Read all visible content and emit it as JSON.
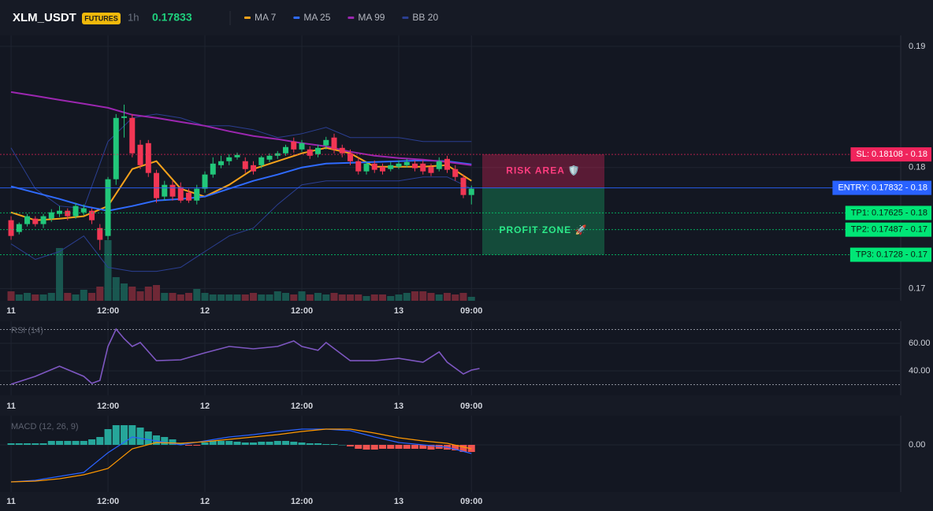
{
  "header": {
    "symbol": "XLM_USDT",
    "badge": "FUTURES",
    "interval": "1h",
    "price": 0.17833
  },
  "chart_data": [
    {
      "type": "candlestick",
      "xlim": [
        -1.37,
        110.15
      ],
      "xticks": [
        {
          "value": 0,
          "label": "11"
        },
        {
          "value": 12,
          "label": "12:00"
        },
        {
          "value": 24,
          "label": "12"
        },
        {
          "value": 36,
          "label": "12:00"
        },
        {
          "value": 48,
          "label": "13"
        },
        {
          "value": 57,
          "label": "09:00"
        }
      ],
      "ylim": [
        0.169,
        0.1909
      ],
      "yticks": [
        0.19,
        0.18,
        0.17
      ],
      "up_color": "#22c77a",
      "down_color": "#f23654",
      "open": [
        0.17565,
        0.17468,
        0.17533,
        0.17578,
        0.17533,
        0.17578,
        0.17617,
        0.17643,
        0.17598,
        0.1763,
        0.17643,
        0.175,
        0.17435,
        0.17903,
        0.18409,
        0.18409,
        0.18188,
        0.18201,
        0.17955,
        0.1776,
        0.17857,
        0.17838,
        0.17792,
        0.17727,
        0.17825,
        0.17942,
        0.18019,
        0.18052,
        0.18084,
        0.18052,
        0.18019,
        0.18019,
        0.18065,
        0.18097,
        0.18117,
        0.18214,
        0.18149,
        0.18149,
        0.1811,
        0.18182,
        0.18247,
        0.18162,
        0.18117,
        0.18052,
        0.17968,
        0.18032,
        0.18006,
        0.17987,
        0.18006,
        0.18019,
        0.18032,
        0.18032,
        0.18006,
        0.17987,
        0.18071,
        0.17987,
        0.17916,
        0.17773
      ],
      "high": [
        0.17598,
        0.17546,
        0.17617,
        0.17598,
        0.17617,
        0.17656,
        0.17682,
        0.17663,
        0.17708,
        0.17695,
        0.17663,
        0.17533,
        0.17922,
        0.18441,
        0.18519,
        0.18441,
        0.18227,
        0.18227,
        0.17981,
        0.1789,
        0.1789,
        0.17877,
        0.17825,
        0.17857,
        0.17968,
        0.18084,
        0.18097,
        0.1811,
        0.18123,
        0.18084,
        0.18052,
        0.18097,
        0.18117,
        0.18136,
        0.18188,
        0.18247,
        0.18227,
        0.18175,
        0.18188,
        0.18253,
        0.18279,
        0.18188,
        0.18149,
        0.18084,
        0.18052,
        0.18058,
        0.18032,
        0.18045,
        0.18058,
        0.18071,
        0.18058,
        0.18058,
        0.18032,
        0.18084,
        0.18097,
        0.18019,
        0.17942,
        0.17851
      ],
      "low": [
        0.17403,
        0.17448,
        0.17513,
        0.17513,
        0.175,
        0.17552,
        0.17591,
        0.17565,
        0.17578,
        0.17604,
        0.17533,
        0.17319,
        0.17403,
        0.17857,
        0.18247,
        0.18084,
        0.17987,
        0.17922,
        0.17708,
        0.17727,
        0.17727,
        0.17708,
        0.17708,
        0.17695,
        0.17792,
        0.17916,
        0.17994,
        0.18019,
        0.18065,
        0.17955,
        0.17942,
        0.17994,
        0.18045,
        0.18071,
        0.18097,
        0.18123,
        0.1813,
        0.18071,
        0.18084,
        0.18149,
        0.18117,
        0.18084,
        0.18019,
        0.17942,
        0.17942,
        0.17955,
        0.17942,
        0.17968,
        0.17987,
        0.18,
        0.17968,
        0.17942,
        0.17929,
        0.17968,
        0.17955,
        0.1789,
        0.17747,
        0.17695
      ],
      "close": [
        0.17435,
        0.17533,
        0.17598,
        0.17533,
        0.17598,
        0.1763,
        0.17643,
        0.17598,
        0.17682,
        0.17663,
        0.17565,
        0.17403,
        0.17903,
        0.18409,
        0.18422,
        0.18117,
        0.18019,
        0.17955,
        0.17747,
        0.17857,
        0.1776,
        0.17727,
        0.17727,
        0.17825,
        0.17942,
        0.18032,
        0.18052,
        0.18084,
        0.18104,
        0.17987,
        0.17968,
        0.18084,
        0.18097,
        0.18117,
        0.18169,
        0.18149,
        0.18201,
        0.18097,
        0.18162,
        0.18227,
        0.18149,
        0.18117,
        0.18052,
        0.17968,
        0.18032,
        0.17981,
        0.17968,
        0.18019,
        0.18032,
        0.18045,
        0.17994,
        0.17968,
        0.17955,
        0.18052,
        0.17981,
        0.17922,
        0.17773,
        0.17825
      ],
      "vlim": [
        0,
        100
      ],
      "volume": [
        12,
        8,
        10,
        8,
        8,
        10,
        67,
        10,
        8,
        14,
        10,
        18,
        77,
        30,
        22,
        18,
        12,
        18,
        20,
        10,
        10,
        8,
        10,
        15,
        10,
        8,
        8,
        8,
        8,
        8,
        10,
        8,
        8,
        12,
        10,
        8,
        12,
        8,
        10,
        8,
        10,
        8,
        8,
        8,
        6,
        8,
        8,
        6,
        8,
        10,
        12,
        12,
        10,
        8,
        10,
        8,
        10,
        5
      ],
      "series": [
        {
          "name": "MA 7",
          "color": "#f7a21b",
          "x": [
            0,
            3,
            6,
            9,
            12,
            15,
            18,
            21,
            24,
            27,
            30,
            33,
            36,
            39,
            42,
            45,
            48,
            51,
            54,
            57
          ],
          "values": [
            0.1763,
            0.17565,
            0.17578,
            0.17598,
            0.17682,
            0.17987,
            0.18052,
            0.17825,
            0.1776,
            0.17857,
            0.17987,
            0.18052,
            0.18117,
            0.18162,
            0.18117,
            0.18006,
            0.18006,
            0.18006,
            0.18019,
            0.1789
          ]
        },
        {
          "name": "MA 25",
          "color": "#2f6bff",
          "x": [
            0,
            3,
            6,
            9,
            12,
            15,
            18,
            21,
            24,
            27,
            30,
            33,
            36,
            39,
            42,
            45,
            48,
            51,
            54,
            57
          ],
          "values": [
            0.17844,
            0.17792,
            0.1774,
            0.17682,
            0.17643,
            0.17682,
            0.17727,
            0.1774,
            0.1776,
            0.17825,
            0.1789,
            0.17942,
            0.18,
            0.18032,
            0.18039,
            0.18045,
            0.18052,
            0.18058,
            0.18052,
            0.18026
          ]
        },
        {
          "name": "MA 99",
          "color": "#9c27b0",
          "x": [
            0,
            3,
            6,
            9,
            12,
            15,
            18,
            21,
            24,
            27,
            30,
            33,
            36,
            39,
            42,
            45,
            48,
            51,
            54,
            57
          ],
          "values": [
            0.18623,
            0.18591,
            0.18558,
            0.18526,
            0.18493,
            0.18435,
            0.18409,
            0.18376,
            0.18344,
            0.18299,
            0.1826,
            0.18234,
            0.18201,
            0.18175,
            0.1813,
            0.18097,
            0.18078,
            0.18065,
            0.18045,
            0.18019
          ]
        },
        {
          "name": "BB 20",
          "color": "#2b3f92",
          "x": [
            0,
            3,
            6,
            9,
            12,
            15,
            18,
            21,
            24,
            27,
            30,
            33,
            36,
            39,
            42,
            45,
            48,
            51,
            54,
            57
          ],
          "values": [
            0.18162,
            0.17825,
            0.17682,
            0.17663,
            0.18214,
            0.18409,
            0.18441,
            0.18409,
            0.18344,
            0.18344,
            0.18312,
            0.18247,
            0.18279,
            0.18331,
            0.18247,
            0.18247,
            0.18247,
            0.18214,
            0.18214,
            0.18214
          ],
          "lower": [
            0.1737,
            0.17241,
            0.17306,
            0.17435,
            0.17176,
            0.17143,
            0.17143,
            0.17176,
            0.17306,
            0.17435,
            0.175,
            0.17695,
            0.17857,
            0.1789,
            0.1789,
            0.1789,
            0.1789,
            0.17922,
            0.17922,
            0.17825
          ]
        }
      ],
      "levels": [
        {
          "label": "SL: 0.18108 - 0.18",
          "value": 0.18108,
          "color": "#f0245c"
        },
        {
          "label": "ENTRY: 0.17832 - 0.18",
          "value": 0.17832,
          "color": "#2962ff"
        },
        {
          "label": "TP1: 0.17625 - 0.18",
          "value": 0.17625,
          "color": "#00e676"
        },
        {
          "label": "TP2: 0.17487 - 0.17",
          "value": 0.17487,
          "color": "#00e676"
        },
        {
          "label": "TP3: 0.1728 - 0.17",
          "value": 0.1728,
          "color": "#00e676"
        }
      ],
      "zones": [
        {
          "label": "RISK AREA 🛡️",
          "color": "#f0245c"
        },
        {
          "label": "PROFIT ZONE 🚀",
          "color": "#19d47a"
        }
      ]
    },
    {
      "type": "line",
      "title": "RSI (14)",
      "xlim": [
        -1.37,
        110.15
      ],
      "xticks": [
        {
          "value": 0,
          "label": "11"
        },
        {
          "value": 12,
          "label": "12:00"
        },
        {
          "value": 24,
          "label": "12"
        },
        {
          "value": 36,
          "label": "12:00"
        },
        {
          "value": 48,
          "label": "13"
        },
        {
          "value": 57,
          "label": "09:00"
        }
      ],
      "ylim": [
        22.3,
        76
      ],
      "yticks": [
        {
          "value": 60,
          "label": "60.00"
        },
        {
          "value": 40,
          "label": "40.00"
        }
      ],
      "levels": [
        70,
        30
      ],
      "series": [
        {
          "color": "#7e57c2",
          "x": [
            0,
            3,
            6,
            9,
            10,
            11,
            12,
            13,
            14,
            15,
            16,
            18,
            21,
            24,
            27,
            30,
            33,
            35,
            36,
            38,
            39,
            42,
            45,
            48,
            51,
            53,
            54,
            56,
            57,
            58
          ],
          "values": [
            30.3,
            36,
            43.4,
            36,
            30.9,
            33.1,
            57.7,
            70.3,
            63.4,
            57.7,
            60.6,
            47.4,
            48,
            53.1,
            57.7,
            56,
            57.7,
            61.7,
            57.7,
            54.9,
            60.6,
            47.4,
            47.4,
            49.1,
            46.3,
            53.7,
            46.3,
            37.7,
            40.6,
            41.7
          ]
        }
      ]
    },
    {
      "type": "macd",
      "title": "MACD (12, 26, 9)",
      "xlim": [
        -1.37,
        110.15
      ],
      "xticks": [
        {
          "value": 0,
          "label": "11"
        },
        {
          "value": 12,
          "label": "12:00"
        },
        {
          "value": 24,
          "label": "12"
        },
        {
          "value": 36,
          "label": "12:00"
        },
        {
          "value": 48,
          "label": "13"
        },
        {
          "value": 57,
          "label": "09:00"
        }
      ],
      "ylim": [
        -0.0006,
        0.00037
      ],
      "yticks": [
        {
          "value": 0,
          "label": "0.00"
        }
      ],
      "pos_color": "#26a69a",
      "neg_color": "#ef5350",
      "histogram": [
        2e-05,
        2e-05,
        2e-05,
        2e-05,
        2e-05,
        5e-05,
        5e-05,
        5e-05,
        5e-05,
        5e-05,
        7e-05,
        0.0001,
        0.0002,
        0.00025,
        0.00025,
        0.00025,
        0.00022,
        0.00017,
        0.00012,
        0.0001,
        7e-05,
        2e-05,
        -1e-05,
        -1e-05,
        3e-05,
        5e-05,
        5e-05,
        5e-05,
        4e-05,
        3e-05,
        3e-05,
        4e-05,
        4e-05,
        5e-05,
        5e-05,
        4e-05,
        3e-05,
        2e-05,
        2e-05,
        1e-05,
        1e-05,
        0,
        -2e-05,
        -5e-05,
        -6e-05,
        -6e-05,
        -5e-05,
        -5e-05,
        -5e-05,
        -5e-05,
        -5e-05,
        -5e-05,
        -6e-05,
        -5e-05,
        -6e-05,
        -7e-05,
        -9e-05,
        -9e-05
      ],
      "series": [
        {
          "color": "#2962ff",
          "x": [
            0,
            3,
            6,
            9,
            12,
            15,
            18,
            21,
            24,
            27,
            30,
            33,
            36,
            39,
            42,
            45,
            48,
            51,
            54,
            57
          ],
          "values": [
            -0.00047,
            -0.00045,
            -0.0004,
            -0.00035,
            -0.0001,
            0.0001,
            5e-05,
            0,
            5e-05,
            0.0001,
            0.00013,
            0.00017,
            0.0002,
            0.0002,
            0.00018,
            0.0001,
            3e-05,
            0,
            -3e-05,
            -0.00011
          ]
        },
        {
          "color": "#ff9800",
          "x": [
            0,
            3,
            6,
            9,
            12,
            15,
            18,
            21,
            24,
            27,
            30,
            33,
            36,
            39,
            42,
            45,
            48,
            51,
            54,
            57
          ],
          "values": [
            -0.00047,
            -0.00046,
            -0.00043,
            -0.00038,
            -0.0003,
            -5e-05,
            3e-05,
            2e-05,
            4e-05,
            7e-05,
            0.0001,
            0.00013,
            0.00017,
            0.0002,
            0.0002,
            0.00015,
            9e-05,
            5e-05,
            2e-05,
            -5e-05
          ]
        }
      ]
    }
  ]
}
